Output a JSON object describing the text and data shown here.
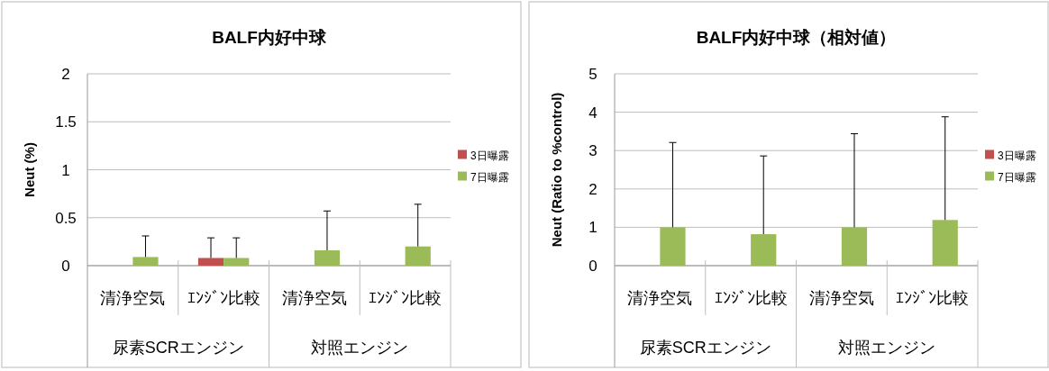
{
  "chart_data": [
    {
      "type": "bar",
      "title": "BALF内好中球",
      "ylabel": "Neut (%)",
      "categories": [
        "清浄空気",
        "ｴﾝｼﾞﾝ比較",
        "清浄空気",
        "ｴﾝｼﾞﾝ比較"
      ],
      "annotations": [
        "尿素SCRエンジン",
        "対照エンジン"
      ],
      "series": [
        {
          "name": "3日曝露",
          "color": "#c0504d",
          "values": [
            null,
            0.08,
            null,
            null
          ],
          "errors": [
            null,
            [
              0.08,
              0.29
            ],
            null,
            null
          ]
        },
        {
          "name": "7日曝露",
          "color": "#9bbb59",
          "values": [
            0.09,
            0.08,
            0.16,
            0.2
          ],
          "errors": [
            [
              0.09,
              0.31
            ],
            [
              0.08,
              0.29
            ],
            [
              0.16,
              0.57
            ],
            [
              0.2,
              0.64
            ]
          ]
        }
      ],
      "ylim": [
        0,
        2
      ],
      "yticks": [
        0,
        0.5,
        1,
        1.5,
        2
      ],
      "grid": "y",
      "legend": "right"
    },
    {
      "type": "bar",
      "title": "BALF内好中球（相対値）",
      "ylabel": "Neut (Ratio to %control)",
      "categories": [
        "清浄空気",
        "ｴﾝｼﾞﾝ比較",
        "清浄空気",
        "ｴﾝｼﾞﾝ比較"
      ],
      "annotations": [
        "尿素SCRエンジン",
        "対照エンジン"
      ],
      "series": [
        {
          "name": "3日曝露",
          "color": "#c0504d",
          "values": [
            null,
            null,
            null,
            null
          ]
        },
        {
          "name": "7日曝露",
          "color": "#9bbb59",
          "values": [
            1.0,
            0.82,
            1.0,
            1.19
          ],
          "errors": [
            [
              1.0,
              3.21
            ],
            [
              0.82,
              2.86
            ],
            [
              1.0,
              3.44
            ],
            [
              1.19,
              3.88
            ]
          ]
        }
      ],
      "ylim": [
        0,
        5
      ],
      "yticks": [
        0,
        1,
        2,
        3,
        4,
        5
      ],
      "grid": "y",
      "legend": "right"
    }
  ]
}
